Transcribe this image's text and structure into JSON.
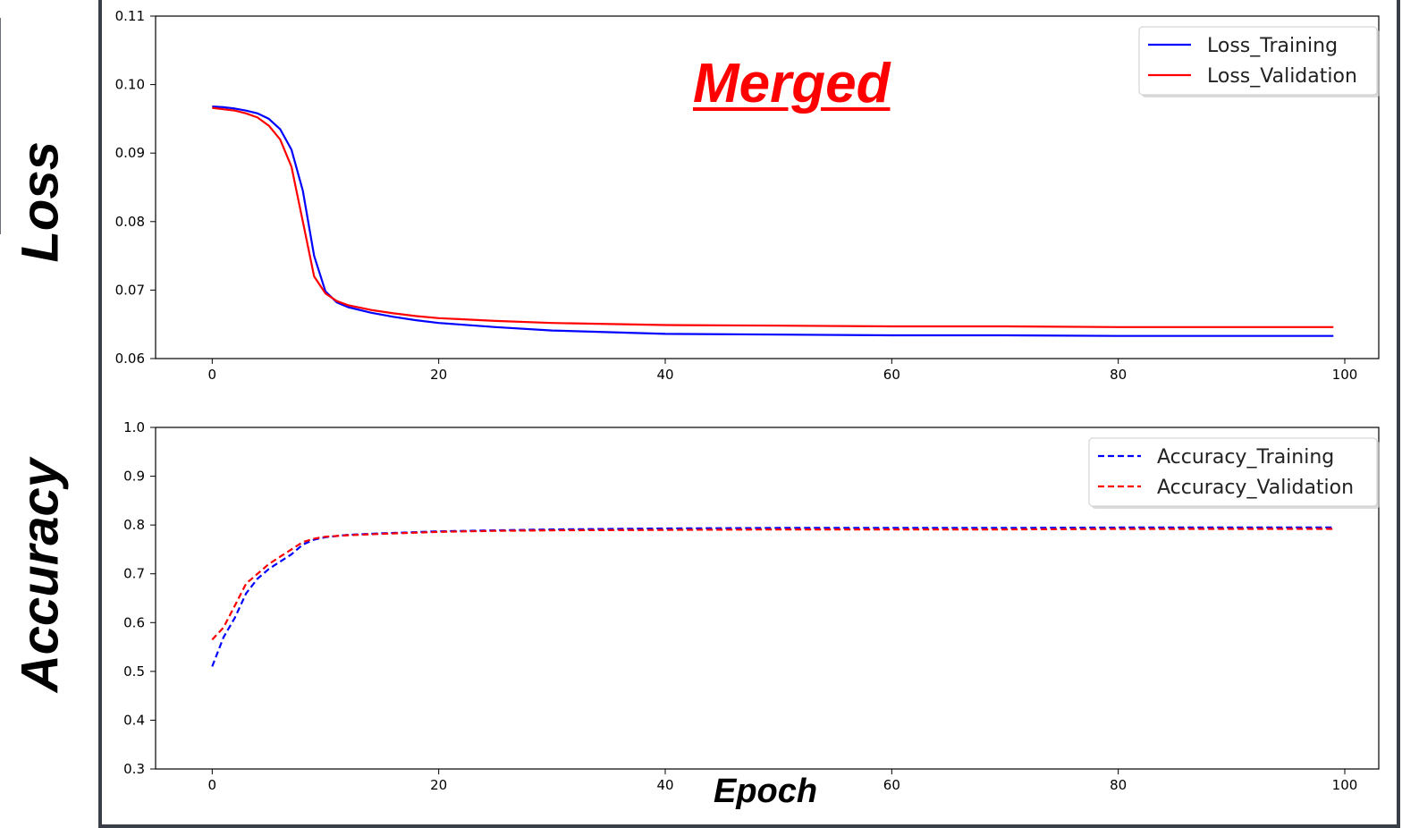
{
  "annotations": {
    "loss_ylabel": "Loss",
    "accuracy_ylabel": "Accuracy",
    "epoch_xlabel": "Epoch",
    "merged_title": "Merged"
  },
  "chart_data": [
    {
      "type": "line",
      "xlim": [
        -5,
        103
      ],
      "ylim": [
        0.06,
        0.11
      ],
      "xticks": [
        0,
        20,
        40,
        60,
        80,
        100
      ],
      "yticks": [
        0.06,
        0.07,
        0.08,
        0.09,
        0.1,
        0.11
      ],
      "ytick_labels": [
        "0.06",
        "0.07",
        "0.08",
        "0.09",
        "0.10",
        "0.11"
      ],
      "grid": false,
      "legend": "top-right",
      "series": [
        {
          "name": "Loss_Training",
          "color": "#0000ff",
          "style": "solid",
          "x": [
            0,
            1,
            2,
            3,
            4,
            5,
            6,
            7,
            8,
            9,
            10,
            11,
            12,
            14,
            16,
            18,
            20,
            25,
            30,
            40,
            50,
            60,
            70,
            80,
            90,
            99
          ],
          "y": [
            0.0968,
            0.0967,
            0.0965,
            0.0962,
            0.0958,
            0.095,
            0.0935,
            0.0905,
            0.0845,
            0.075,
            0.0698,
            0.0682,
            0.0675,
            0.0667,
            0.0661,
            0.0656,
            0.0652,
            0.0646,
            0.0641,
            0.0636,
            0.0635,
            0.0634,
            0.0634,
            0.0633,
            0.0633,
            0.0633
          ]
        },
        {
          "name": "Loss_Validation",
          "color": "#ff0000",
          "style": "solid",
          "x": [
            0,
            1,
            2,
            3,
            4,
            5,
            6,
            7,
            8,
            9,
            10,
            11,
            12,
            14,
            16,
            18,
            20,
            25,
            30,
            40,
            50,
            60,
            70,
            80,
            90,
            99
          ],
          "y": [
            0.0966,
            0.0964,
            0.0962,
            0.0958,
            0.0952,
            0.094,
            0.092,
            0.088,
            0.08,
            0.072,
            0.0695,
            0.0684,
            0.0678,
            0.0671,
            0.0666,
            0.0662,
            0.0659,
            0.0655,
            0.0652,
            0.0649,
            0.0648,
            0.0647,
            0.0647,
            0.0646,
            0.0646,
            0.0646
          ]
        }
      ]
    },
    {
      "type": "line",
      "xlim": [
        -5,
        103
      ],
      "ylim": [
        0.3,
        1.0
      ],
      "xticks": [
        0,
        20,
        40,
        60,
        80,
        100
      ],
      "yticks": [
        0.3,
        0.4,
        0.5,
        0.6,
        0.7,
        0.8,
        0.9,
        1.0
      ],
      "ytick_labels": [
        "0.3",
        "0.4",
        "0.5",
        "0.6",
        "0.7",
        "0.8",
        "0.9",
        "1.0"
      ],
      "grid": false,
      "legend": "top-right",
      "series": [
        {
          "name": "Accuracy_Training",
          "color": "#0000ff",
          "style": "dashed",
          "x": [
            0,
            1,
            2,
            3,
            4,
            5,
            6,
            7,
            8,
            9,
            10,
            12,
            15,
            20,
            25,
            30,
            40,
            50,
            60,
            70,
            80,
            90,
            99
          ],
          "y": [
            0.51,
            0.57,
            0.61,
            0.66,
            0.69,
            0.71,
            0.725,
            0.74,
            0.76,
            0.77,
            0.775,
            0.78,
            0.783,
            0.787,
            0.789,
            0.791,
            0.793,
            0.794,
            0.794,
            0.794,
            0.795,
            0.795,
            0.795
          ]
        },
        {
          "name": "Accuracy_Validation",
          "color": "#ff0000",
          "style": "dashed",
          "x": [
            0,
            1,
            2,
            3,
            4,
            5,
            6,
            7,
            8,
            9,
            10,
            12,
            15,
            20,
            25,
            30,
            40,
            50,
            60,
            70,
            80,
            90,
            99
          ],
          "y": [
            0.565,
            0.59,
            0.635,
            0.68,
            0.7,
            0.72,
            0.735,
            0.75,
            0.765,
            0.772,
            0.776,
            0.779,
            0.782,
            0.786,
            0.788,
            0.789,
            0.79,
            0.791,
            0.791,
            0.791,
            0.792,
            0.792,
            0.792
          ]
        }
      ]
    }
  ]
}
